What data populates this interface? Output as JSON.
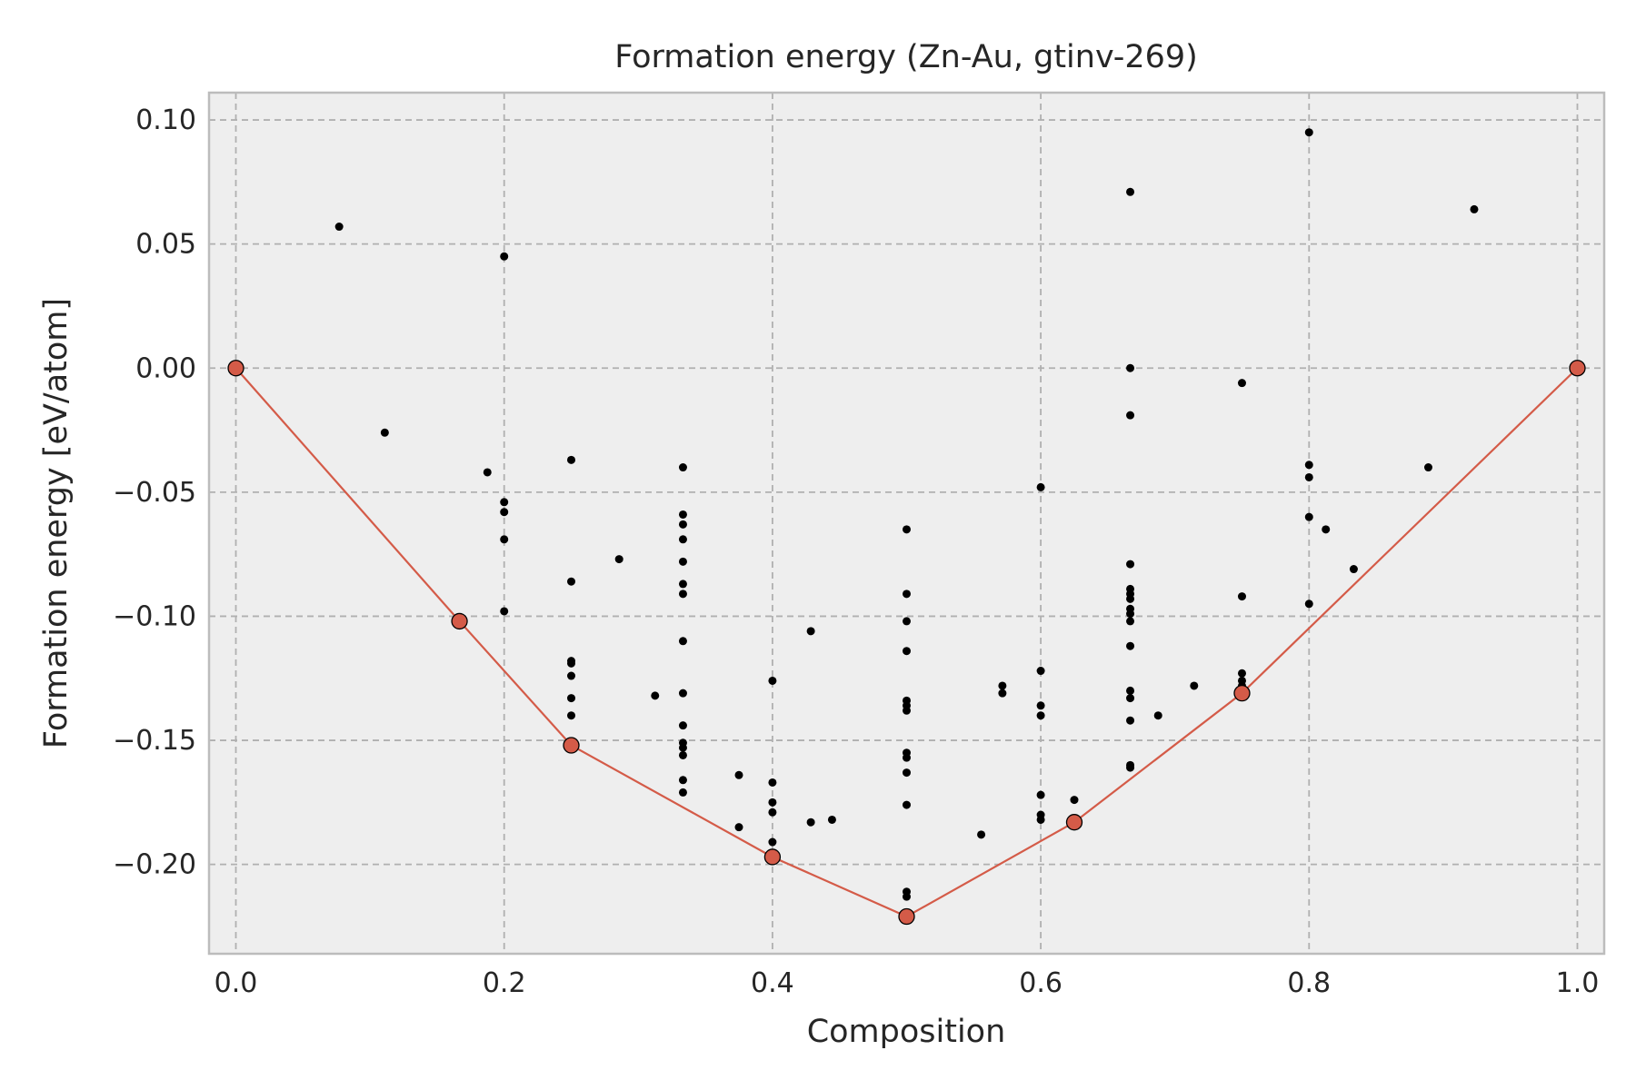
{
  "chart_data": {
    "type": "scatter",
    "title": "Formation energy (Zn-Au, gtinv-269)",
    "xlabel": "Composition",
    "ylabel": "Formation energy [eV/atom]",
    "xlim": [
      -0.02,
      1.02
    ],
    "ylim": [
      -0.236,
      0.111
    ],
    "grid": true,
    "x_ticks": [
      0.0,
      0.2,
      0.4,
      0.6,
      0.8,
      1.0
    ],
    "x_tick_labels": [
      "0.0",
      "0.2",
      "0.4",
      "0.6",
      "0.8",
      "1.0"
    ],
    "y_ticks": [
      0.1,
      0.05,
      0.0,
      -0.05,
      -0.1,
      -0.15,
      -0.2
    ],
    "y_tick_labels": [
      "0.10",
      "0.05",
      "0.00",
      "−0.05",
      "−0.10",
      "−0.15",
      "−0.20"
    ],
    "colors": {
      "background": "#eeeeee",
      "frame": "#bcbcbc",
      "hull": "#d45b48",
      "point": "#000000"
    },
    "series": [
      {
        "role": "structures",
        "points": [
          [
            0.077,
            0.057
          ],
          [
            0.111,
            -0.026
          ],
          [
            0.1875,
            -0.042
          ],
          [
            0.2,
            0.045
          ],
          [
            0.2,
            -0.054
          ],
          [
            0.2,
            -0.058
          ],
          [
            0.2,
            -0.069
          ],
          [
            0.2,
            -0.098
          ],
          [
            0.25,
            -0.037
          ],
          [
            0.25,
            -0.086
          ],
          [
            0.25,
            -0.118
          ],
          [
            0.25,
            -0.119
          ],
          [
            0.25,
            -0.124
          ],
          [
            0.25,
            -0.133
          ],
          [
            0.25,
            -0.14
          ],
          [
            0.2857,
            -0.077
          ],
          [
            0.3125,
            -0.132
          ],
          [
            0.3333,
            -0.04
          ],
          [
            0.3333,
            -0.059
          ],
          [
            0.3333,
            -0.063
          ],
          [
            0.3333,
            -0.069
          ],
          [
            0.3333,
            -0.078
          ],
          [
            0.3333,
            -0.087
          ],
          [
            0.3333,
            -0.091
          ],
          [
            0.3333,
            -0.11
          ],
          [
            0.3333,
            -0.131
          ],
          [
            0.3333,
            -0.144
          ],
          [
            0.3333,
            -0.151
          ],
          [
            0.3333,
            -0.153
          ],
          [
            0.3333,
            -0.156
          ],
          [
            0.3333,
            -0.166
          ],
          [
            0.3333,
            -0.171
          ],
          [
            0.375,
            -0.164
          ],
          [
            0.375,
            -0.185
          ],
          [
            0.4,
            -0.126
          ],
          [
            0.4,
            -0.167
          ],
          [
            0.4,
            -0.175
          ],
          [
            0.4,
            -0.179
          ],
          [
            0.4,
            -0.191
          ],
          [
            0.4286,
            -0.106
          ],
          [
            0.4286,
            -0.183
          ],
          [
            0.4444,
            -0.182
          ],
          [
            0.5,
            -0.065
          ],
          [
            0.5,
            -0.091
          ],
          [
            0.5,
            -0.102
          ],
          [
            0.5,
            -0.114
          ],
          [
            0.5,
            -0.134
          ],
          [
            0.5,
            -0.136
          ],
          [
            0.5,
            -0.138
          ],
          [
            0.5,
            -0.155
          ],
          [
            0.5,
            -0.157
          ],
          [
            0.5,
            -0.163
          ],
          [
            0.5,
            -0.176
          ],
          [
            0.5,
            -0.211
          ],
          [
            0.5,
            -0.213
          ],
          [
            0.5556,
            -0.188
          ],
          [
            0.5714,
            -0.128
          ],
          [
            0.5714,
            -0.131
          ],
          [
            0.6,
            -0.048
          ],
          [
            0.6,
            -0.122
          ],
          [
            0.6,
            -0.136
          ],
          [
            0.6,
            -0.14
          ],
          [
            0.6,
            -0.172
          ],
          [
            0.6,
            -0.18
          ],
          [
            0.6,
            -0.182
          ],
          [
            0.625,
            -0.174
          ],
          [
            0.6667,
            0.071
          ],
          [
            0.6667,
            0.0
          ],
          [
            0.6667,
            -0.019
          ],
          [
            0.6667,
            -0.079
          ],
          [
            0.6667,
            -0.089
          ],
          [
            0.6667,
            -0.091
          ],
          [
            0.6667,
            -0.093
          ],
          [
            0.6667,
            -0.097
          ],
          [
            0.6667,
            -0.099
          ],
          [
            0.6667,
            -0.102
          ],
          [
            0.6667,
            -0.112
          ],
          [
            0.6667,
            -0.13
          ],
          [
            0.6667,
            -0.133
          ],
          [
            0.6667,
            -0.142
          ],
          [
            0.6667,
            -0.16
          ],
          [
            0.6667,
            -0.161
          ],
          [
            0.6875,
            -0.14
          ],
          [
            0.7143,
            -0.128
          ],
          [
            0.75,
            -0.006
          ],
          [
            0.75,
            -0.092
          ],
          [
            0.75,
            -0.123
          ],
          [
            0.75,
            -0.126
          ],
          [
            0.75,
            -0.128
          ],
          [
            0.8,
            0.095
          ],
          [
            0.8,
            -0.039
          ],
          [
            0.8,
            -0.044
          ],
          [
            0.8,
            -0.06
          ],
          [
            0.8,
            -0.095
          ],
          [
            0.8125,
            -0.065
          ],
          [
            0.8333,
            -0.081
          ],
          [
            0.8889,
            -0.04
          ],
          [
            0.9231,
            0.064
          ]
        ]
      },
      {
        "role": "convex-hull",
        "points": [
          [
            0.0,
            0.0
          ],
          [
            0.1667,
            -0.102
          ],
          [
            0.25,
            -0.152
          ],
          [
            0.4,
            -0.197
          ],
          [
            0.5,
            -0.221
          ],
          [
            0.625,
            -0.183
          ],
          [
            0.75,
            -0.131
          ],
          [
            1.0,
            0.0
          ]
        ]
      }
    ]
  }
}
